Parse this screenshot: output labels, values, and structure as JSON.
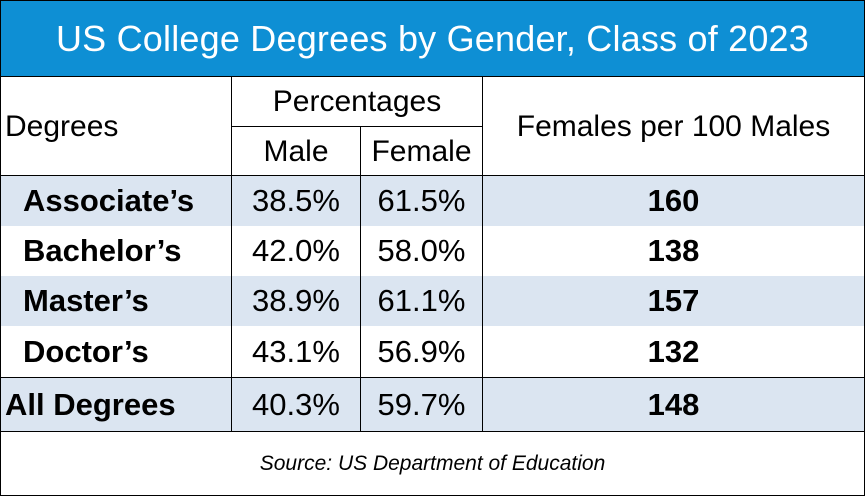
{
  "title": "US College Degrees by Gender, Class of 2023",
  "header": {
    "degrees": "Degrees",
    "percentages": "Percentages",
    "male": "Male",
    "female": "Female",
    "ratio": "Females per 100 Males"
  },
  "rows": [
    {
      "degree": "Associate’s",
      "male": "38.5%",
      "female": "61.5%",
      "ratio": "160"
    },
    {
      "degree": "Bachelor’s",
      "male": "42.0%",
      "female": "58.0%",
      "ratio": "138"
    },
    {
      "degree": "Master’s",
      "male": "38.9%",
      "female": "61.1%",
      "ratio": "157"
    },
    {
      "degree": "Doctor’s",
      "male": "43.1%",
      "female": "56.9%",
      "ratio": "132"
    }
  ],
  "total": {
    "degree": "All Degrees",
    "male": "40.3%",
    "female": "59.7%",
    "ratio": "148"
  },
  "source": "Source: US Department of Education",
  "colors": {
    "title_background": "#0e8fd4",
    "band": "#dbe5f1"
  }
}
